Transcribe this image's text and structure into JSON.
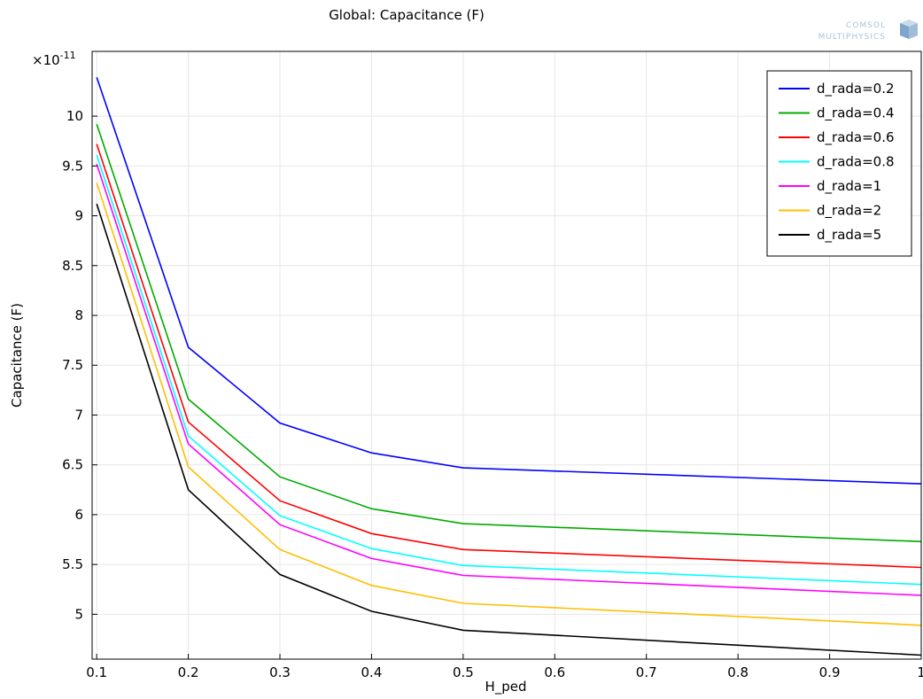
{
  "app": {
    "logo_line1": "COMSOL",
    "logo_line2": "MULTIPHYSICS"
  },
  "chart_data": {
    "type": "line",
    "title": "Global: Capacitance (F)",
    "xlabel": "H_ped",
    "ylabel": "Capacitance (F)",
    "y_multiplier_label": "×10",
    "y_multiplier_exponent": "-11",
    "x": [
      0.1,
      0.2,
      0.3,
      0.4,
      0.5,
      1
    ],
    "xlim": [
      0.095,
      1
    ],
    "ylim": [
      4.55,
      10.65
    ],
    "x_ticks": [
      {
        "value": 0.1,
        "label": "0.1"
      },
      {
        "value": 0.2,
        "label": "0.2"
      },
      {
        "value": 0.3,
        "label": "0.3"
      },
      {
        "value": 0.4,
        "label": "0.4"
      },
      {
        "value": 0.5,
        "label": "0.5"
      },
      {
        "value": 0.6,
        "label": "0.6"
      },
      {
        "value": 0.7,
        "label": "0.7"
      },
      {
        "value": 0.8,
        "label": "0.8"
      },
      {
        "value": 0.9,
        "label": "0.9"
      },
      {
        "value": 1,
        "label": "1"
      }
    ],
    "y_ticks": [
      {
        "value": 5,
        "label": "5"
      },
      {
        "value": 5.5,
        "label": "5.5"
      },
      {
        "value": 6,
        "label": "6"
      },
      {
        "value": 6.5,
        "label": "6.5"
      },
      {
        "value": 7,
        "label": "7"
      },
      {
        "value": 7.5,
        "label": "7.5"
      },
      {
        "value": 8,
        "label": "8"
      },
      {
        "value": 8.5,
        "label": "8.5"
      },
      {
        "value": 9,
        "label": "9"
      },
      {
        "value": 9.5,
        "label": "9.5"
      },
      {
        "value": 10,
        "label": "10"
      }
    ],
    "grid": true,
    "legend_position": "top-right",
    "series": [
      {
        "name": "d_rada=0.2",
        "color": "#0000ff",
        "values": [
          10.39,
          7.68,
          6.92,
          6.62,
          6.47,
          6.31
        ]
      },
      {
        "name": "d_rada=0.4",
        "color": "#00aa00",
        "values": [
          9.92,
          7.16,
          6.38,
          6.06,
          5.91,
          5.73
        ]
      },
      {
        "name": "d_rada=0.6",
        "color": "#ff0000",
        "values": [
          9.72,
          6.93,
          6.14,
          5.81,
          5.65,
          5.47
        ]
      },
      {
        "name": "d_rada=0.8",
        "color": "#00ffff",
        "values": [
          9.61,
          6.79,
          5.99,
          5.66,
          5.49,
          5.3
        ]
      },
      {
        "name": "d_rada=1",
        "color": "#ff00ff",
        "values": [
          9.52,
          6.71,
          5.9,
          5.56,
          5.39,
          5.19
        ]
      },
      {
        "name": "d_rada=2",
        "color": "#ffbf00",
        "values": [
          9.33,
          6.48,
          5.65,
          5.29,
          5.11,
          4.89
        ]
      },
      {
        "name": "d_rada=5",
        "color": "#000000",
        "values": [
          9.12,
          6.25,
          5.4,
          5.03,
          4.84,
          4.59
        ]
      }
    ]
  }
}
